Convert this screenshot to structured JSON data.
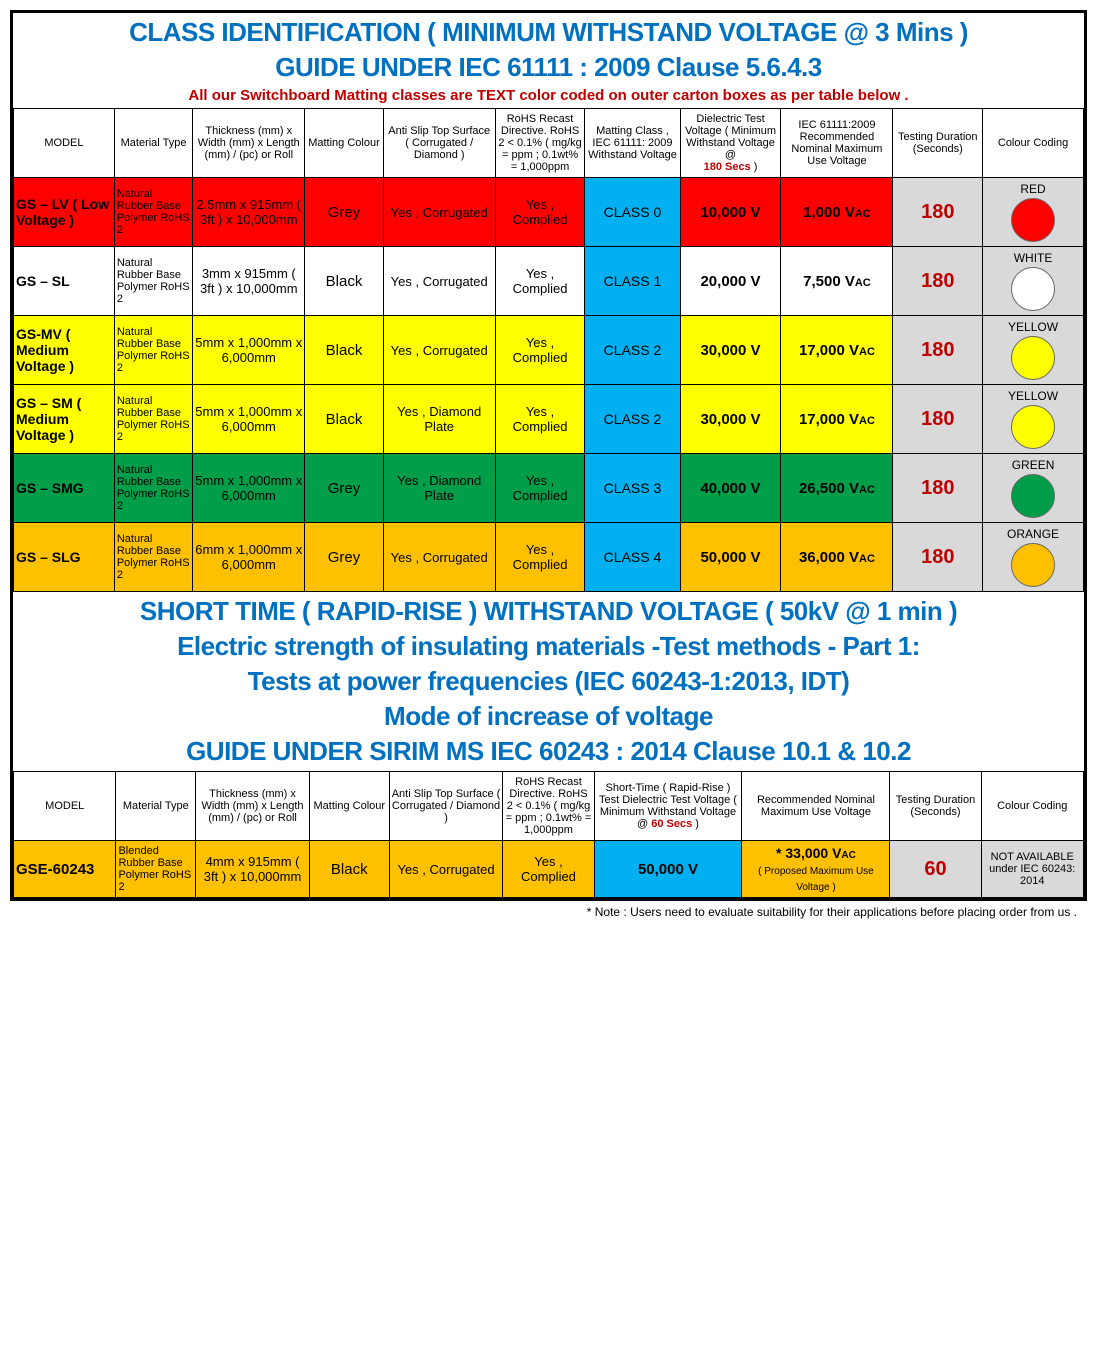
{
  "palette": {
    "blue_title": "#0070c0",
    "red_warn": "#c00000",
    "row_red": "#ff0000",
    "row_yellow": "#ffff00",
    "row_green": "#009e49",
    "row_orange": "#ffc000",
    "row_white": "#ffffff",
    "lightgrey": "#d9d9d9",
    "cyan": "#00b0f0"
  },
  "header1": {
    "line1": "CLASS IDENTIFICATION ( MINIMUM WITHSTAND VOLTAGE  @ 3 Mins )",
    "line2": "GUIDE UNDER IEC 61111 : 2009 Clause 5.6.4.3",
    "warn": "All our Switchboard Matting classes are TEXT color coded on outer carton boxes as per table below ."
  },
  "t1cols": [
    "MODEL",
    "Material Type",
    "Thickness (mm) x Width (mm) x Length (mm) / (pc) or Roll",
    "Matting Colour",
    "Anti Slip Top Surface ( Corrugated / Diamond )",
    "RoHS Recast Directive. RoHS 2 < 0.1% ( mg/kg = ppm ; 0.1wt% = 1,000ppm",
    "Matting Class , IEC 61111: 2009 Withstand Voltage",
    "Dielectric Test Voltage ( Minimum Withstand Voltage @",
    "180 Secs",
    " )",
    "IEC 61111:2009 Recommended Nominal Maximum Use Voltage",
    "Testing Duration (Seconds)",
    "Colour Coding"
  ],
  "t1rows": [
    {
      "bg": "#ff0000",
      "model": "GS – LV ( Low Voltage )",
      "material": "Natural Rubber Base Polymer RoHS 2",
      "thickness": "2.5mm x 915mm ( 3ft ) x 10,000mm",
      "matcol": "Grey",
      "slip": "Yes , Corrugated",
      "rohs": "Yes , Complied",
      "class": "CLASS 0",
      "volt": "10,000 V",
      "iec": "1,000 V",
      "iecAc": "AC",
      "duration": "180",
      "colorLabel": "RED",
      "swatch": "#ff0000"
    },
    {
      "bg": "#ffffff",
      "model": "GS – SL",
      "material": "Natural Rubber Base Polymer RoHS 2",
      "thickness": "3mm x 915mm ( 3ft ) x 10,000mm",
      "matcol": "Black",
      "slip": "Yes , Corrugated",
      "rohs": "Yes , Complied",
      "class": "CLASS 1",
      "volt": "20,000 V",
      "iec": "7,500 V",
      "iecAc": "AC",
      "duration": "180",
      "colorLabel": "WHITE",
      "swatch": "#ffffff"
    },
    {
      "bg": "#ffff00",
      "model": "GS-MV ( Medium Voltage )",
      "material": "Natural Rubber Base Polymer RoHS 2",
      "thickness": "5mm x 1,000mm x 6,000mm",
      "matcol": "Black",
      "slip": "Yes , Corrugated",
      "rohs": "Yes , Complied",
      "class": "CLASS 2",
      "volt": "30,000 V",
      "iec": "17,000 V",
      "iecAc": "AC",
      "duration": "180",
      "colorLabel": "YELLOW",
      "swatch": "#ffff00"
    },
    {
      "bg": "#ffff00",
      "model": "GS – SM ( Medium Voltage )",
      "material": "Natural Rubber Base Polymer RoHS 2",
      "thickness": "5mm x 1,000mm x 6,000mm",
      "matcol": "Black",
      "slip": "Yes , Diamond Plate",
      "rohs": "Yes , Complied",
      "class": "CLASS 2",
      "volt": "30,000 V",
      "iec": "17,000 V",
      "iecAc": "AC",
      "duration": "180",
      "colorLabel": "YELLOW",
      "swatch": "#ffff00"
    },
    {
      "bg": "#009e49",
      "model": "GS – SMG",
      "material": "Natural Rubber Base Polymer RoHS 2",
      "thickness": "5mm x 1,000mm x 6,000mm",
      "matcol": "Grey",
      "slip": "Yes , Diamond Plate",
      "rohs": "Yes , Complied",
      "class": "CLASS 3",
      "volt": "40,000 V",
      "iec": "26,500 V",
      "iecAc": "AC",
      "duration": "180",
      "colorLabel": "GREEN",
      "swatch": "#009e49"
    },
    {
      "bg": "#ffc000",
      "model": "GS – SLG",
      "material": "Natural Rubber Base Polymer RoHS 2",
      "thickness": "6mm x 1,000mm x 6,000mm",
      "matcol": "Grey",
      "slip": "Yes , Corrugated",
      "rohs": "Yes , Complied",
      "class": "CLASS 4",
      "volt": "50,000 V",
      "iec": "36,000 V",
      "iecAc": "AC",
      "duration": "180",
      "colorLabel": "ORANGE",
      "swatch": "#ffc000"
    }
  ],
  "header2": {
    "line1": "SHORT TIME ( RAPID-RISE ) WITHSTAND VOLTAGE ( 50kV @ 1 min )",
    "line2": "Electric strength of insulating materials -Test methods - Part 1:",
    "line3": "Tests at power frequencies (IEC 60243-1:2013, IDT)",
    "line4": "Mode of increase of voltage",
    "line5": "GUIDE UNDER SIRIM MS IEC 60243 : 2014 Clause 10.1 & 10.2"
  },
  "t2cols": [
    "MODEL",
    "Material Type",
    "Thickness (mm) x Width (mm) x Length (mm) / (pc) or Roll",
    "Matting Colour",
    "Anti Slip Top Surface ( Corrugated / Diamond )",
    "RoHS Recast Directive. RoHS 2 < 0.1% ( mg/kg = ppm ; 0.1wt% = 1,000ppm",
    "Short-Time ( Rapid-Rise ) Test Dielectric Test Voltage ( Minimum Withstand Voltage @",
    "60 Secs",
    " )",
    "Recommended Nominal Maximum Use Voltage",
    "Testing Duration (Seconds)",
    "Colour Coding"
  ],
  "t2row": {
    "bg": "#ffc000",
    "model": "GSE-60243",
    "material": "Blended Rubber Base Polymer RoHS 2",
    "thickness": "4mm x 915mm ( 3ft ) x 10,000mm",
    "matcol": "Black",
    "slip": "Yes , Corrugated",
    "rohs": "Yes , Complied",
    "volt": "50,000 V",
    "iec": "* 33,000 V",
    "iecAc": "AC",
    "iecNote": "( Proposed Maximum Use Voltage )",
    "duration": "60",
    "colorLabel": "NOT AVAILABLE under IEC 60243: 2014"
  },
  "footnote": "* Note : Users need to evaluate suitability for their applications before placing order from us ."
}
